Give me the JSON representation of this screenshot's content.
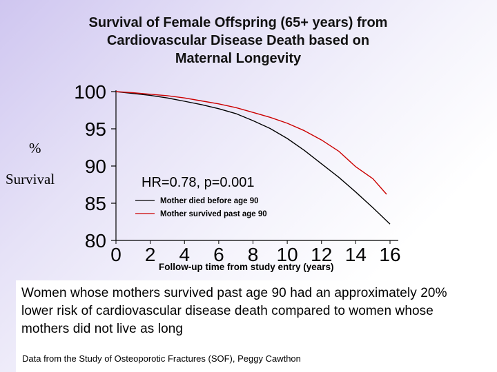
{
  "title": {
    "line1": "Survival of Female Offspring (65+ years) from",
    "line2": "Cardiovascular Disease Death based on",
    "line3": "Maternal Longevity"
  },
  "y_axis_label": {
    "line1": "%",
    "line2": "Survival"
  },
  "chart_data": {
    "type": "line",
    "title": "Survival of Female Offspring (65+ years) from Cardiovascular Disease Death based on Maternal Longevity",
    "xlabel": "Follow-up time from study entry (years)",
    "ylabel": "% Survival",
    "xlim": [
      0,
      16
    ],
    "ylim": [
      80,
      100
    ],
    "x_ticks": [
      "0",
      "2",
      "4",
      "6",
      "8",
      "10",
      "12",
      "14",
      "16"
    ],
    "y_ticks": [
      "100",
      "95",
      "90",
      "85",
      "80"
    ],
    "annotation": "HR=0.78, p=0.001",
    "legend": [
      {
        "label": "Mother died before age 90",
        "color": "#000000"
      },
      {
        "label": "Mother survived past age 90",
        "color": "#cc0000"
      }
    ],
    "series": [
      {
        "name": "Mother died before age 90",
        "color": "#000000",
        "x": [
          0,
          1,
          2,
          3,
          4,
          5,
          6,
          7,
          8,
          9,
          10,
          11,
          12,
          13,
          14,
          15,
          16
        ],
        "y": [
          100,
          99.75,
          99.5,
          99.15,
          98.7,
          98.25,
          97.7,
          97.05,
          96.1,
          95.05,
          93.7,
          92.1,
          90.3,
          88.5,
          86.5,
          84.4,
          82.2
        ]
      },
      {
        "name": "Mother survived past age 90",
        "color": "#cc0000",
        "x": [
          0,
          1,
          2,
          3,
          4,
          5,
          6,
          7,
          8,
          9,
          10,
          11,
          12,
          13,
          14,
          15,
          15.8
        ],
        "y": [
          100,
          99.85,
          99.65,
          99.45,
          99.15,
          98.75,
          98.35,
          97.85,
          97.2,
          96.55,
          95.75,
          94.75,
          93.5,
          92.0,
          89.9,
          88.3,
          86.2
        ]
      }
    ]
  },
  "summary": {
    "text": "Women whose mothers survived past age 90 had an approximately 20% lower risk of cardiovascular disease death compared to women whose mothers did not live as long",
    "source": "Data from the Study of Osteoporotic Fractures (SOF), Peggy Cawthon"
  }
}
